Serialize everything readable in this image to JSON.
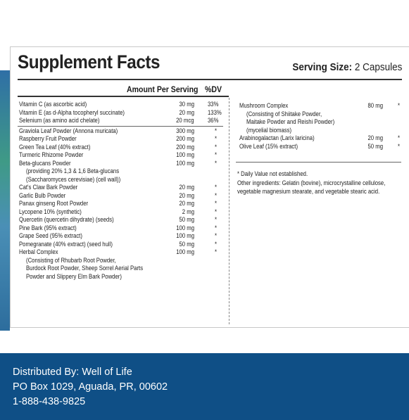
{
  "title": "Supplement Facts",
  "serving": {
    "label": "Serving Size:",
    "value": "2 Capsules"
  },
  "columns": {
    "amount": "Amount Per Serving",
    "dv": "%DV"
  },
  "left_rows": [
    {
      "name": "Vitamin C (as ascorbic acid)",
      "amount": "30 mg",
      "dv": "33%"
    },
    {
      "name": "Vitamin E (as d-Alpha tocopheryl succinate)",
      "amount": "20 mg",
      "dv": "133%"
    },
    {
      "name": "Selenium (as amino acid chelate)",
      "amount": "20 mcg",
      "dv": "36%"
    },
    {
      "name": "Graviola Leaf Powder (Annona muricata)",
      "amount": "300 mg",
      "dv": "*"
    },
    {
      "name": "Raspberry Fruit Powder",
      "amount": "200 mg",
      "dv": "*"
    },
    {
      "name": "Green Tea Leaf (40% extract)",
      "amount": "200 mg",
      "dv": "*"
    },
    {
      "name": "Turmeric Rhizome Powder",
      "amount": "100 mg",
      "dv": "*"
    },
    {
      "name": "Beta-glucans Powder",
      "amount": "100 mg",
      "dv": "*"
    },
    {
      "name": "(providing 20% 1,3 & 1,6 Beta-glucans",
      "amount": "",
      "dv": ""
    },
    {
      "name": "(Saccharomyces cerevisiae) (cell wall))",
      "amount": "",
      "dv": ""
    },
    {
      "name": "Cat's Claw Bark Powder",
      "amount": "20 mg",
      "dv": "*"
    },
    {
      "name": "Garlic Bulb Powder",
      "amount": "20 mg",
      "dv": "*"
    },
    {
      "name": "Panax ginseng Root Powder",
      "amount": "20 mg",
      "dv": "*"
    },
    {
      "name": "Lycopene 10% (synthetic)",
      "amount": "2 mg",
      "dv": "*"
    },
    {
      "name": "Quercetin (quercetin dihydrate) (seeds)",
      "amount": "50 mg",
      "dv": "*"
    },
    {
      "name": "Pine Bark (95% extract)",
      "amount": "100 mg",
      "dv": "*"
    },
    {
      "name": "Grape Seed (95% extract)",
      "amount": "100 mg",
      "dv": "*"
    },
    {
      "name": "Pomegranate (40% extract) (seed hull)",
      "amount": "50 mg",
      "dv": "*"
    },
    {
      "name": "Herbal Complex",
      "amount": "100 mg",
      "dv": "*"
    },
    {
      "name": "(Consisting of Rhubarb Root Powder,",
      "amount": "",
      "dv": ""
    },
    {
      "name": "Burdock Root Powder, Sheep Sorrel Aerial Parts",
      "amount": "",
      "dv": ""
    },
    {
      "name": "Powder and Slippery Elm Bark Powder)",
      "amount": "",
      "dv": ""
    }
  ],
  "right_rows": [
    {
      "name": "Mushroom Complex",
      "amount": "80 mg",
      "dv": "*"
    },
    {
      "name": "(Consisting of Shiitake Powder,",
      "amount": "",
      "dv": ""
    },
    {
      "name": "Maitake Powder and Reishi Powder)",
      "amount": "",
      "dv": ""
    },
    {
      "name": "(mycelial biomass)",
      "amount": "",
      "dv": ""
    },
    {
      "name": "Arabinogalactan (Larix laricina)",
      "amount": "20 mg",
      "dv": "*"
    },
    {
      "name": "Olive Leaf (15% extract)",
      "amount": "50 mg",
      "dv": "*"
    }
  ],
  "notes": {
    "dv_note": "* Daily Value not established.",
    "ingredients_1": "Other ingredients: Gelatin (bovine), microcrystalline cellulose,",
    "ingredients_2": "vegetable magnesium stearate, and vegetable stearic acid."
  },
  "footer": {
    "line1": "Distributed By: Well of Life",
    "line2": "PO Box 1029, Aguada, PR, 00602",
    "line3": "1-888-438-9825"
  }
}
